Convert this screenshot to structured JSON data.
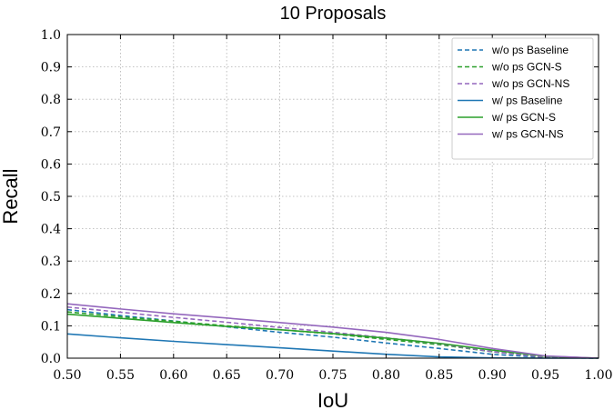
{
  "chart_data": {
    "type": "line",
    "title": "10 Proposals",
    "xlabel": "IoU",
    "ylabel": "Recall",
    "xlim": [
      0.5,
      1.0
    ],
    "ylim": [
      0.0,
      1.0
    ],
    "grid": true,
    "legend_position": "top-right",
    "x_ticks": [
      "0.50",
      "0.55",
      "0.60",
      "0.65",
      "0.70",
      "0.75",
      "0.80",
      "0.85",
      "0.90",
      "0.95",
      "1.00"
    ],
    "y_ticks": [
      "0.0",
      "0.1",
      "0.2",
      "0.3",
      "0.4",
      "0.5",
      "0.6",
      "0.7",
      "0.8",
      "0.9",
      "1.0"
    ],
    "x": [
      0.5,
      0.55,
      0.6,
      0.65,
      0.7,
      0.75,
      0.8,
      0.85,
      0.9,
      0.95,
      1.0
    ],
    "series": [
      {
        "name": "w/o ps Baseline",
        "color": "#1f77b4",
        "dash": true,
        "values": [
          0.15,
          0.132,
          0.115,
          0.097,
          0.08,
          0.065,
          0.047,
          0.03,
          0.012,
          0.002,
          0.0
        ]
      },
      {
        "name": "w/o ps GCN-S",
        "color": "#2ca02c",
        "dash": true,
        "values": [
          0.143,
          0.128,
          0.114,
          0.1,
          0.088,
          0.075,
          0.058,
          0.042,
          0.02,
          0.003,
          0.0
        ]
      },
      {
        "name": "w/o ps GCN-NS",
        "color": "#9467bd",
        "dash": true,
        "values": [
          0.158,
          0.142,
          0.126,
          0.111,
          0.095,
          0.08,
          0.063,
          0.045,
          0.02,
          0.003,
          0.0
        ]
      },
      {
        "name": "w/ ps Baseline",
        "color": "#1f77b4",
        "dash": false,
        "values": [
          0.075,
          0.063,
          0.052,
          0.042,
          0.032,
          0.022,
          0.012,
          0.004,
          0.001,
          0.0,
          0.0
        ]
      },
      {
        "name": "w/ ps GCN-S",
        "color": "#2ca02c",
        "dash": false,
        "values": [
          0.136,
          0.123,
          0.11,
          0.098,
          0.088,
          0.076,
          0.062,
          0.046,
          0.025,
          0.006,
          0.0
        ]
      },
      {
        "name": "w/ ps GCN-NS",
        "color": "#9467bd",
        "dash": false,
        "values": [
          0.168,
          0.152,
          0.137,
          0.124,
          0.11,
          0.096,
          0.08,
          0.058,
          0.03,
          0.007,
          0.0
        ]
      }
    ]
  }
}
